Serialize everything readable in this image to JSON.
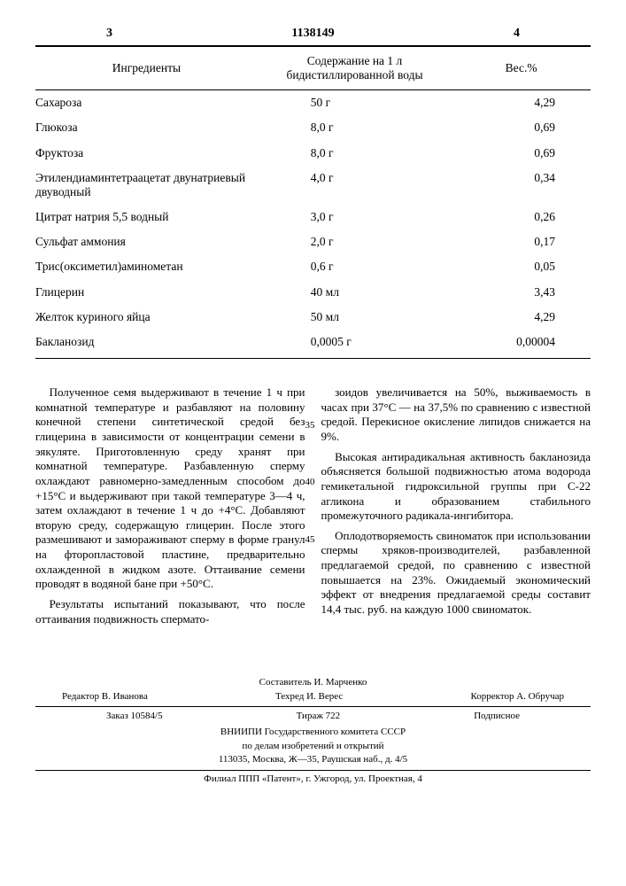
{
  "header": {
    "left_page": "3",
    "doc_number": "1138149",
    "right_page": "4"
  },
  "table": {
    "columns": [
      "Ингредиенты",
      "Содержание на 1 л бидистиллированной воды",
      "Вес.%"
    ],
    "rows": [
      [
        "Сахароза",
        "50 г",
        "4,29"
      ],
      [
        "Глюкоза",
        "8,0 г",
        "0,69"
      ],
      [
        "Фруктоза",
        "8,0 г",
        "0,69"
      ],
      [
        "Этилендиаминтетраацетат двунатриевый двуводный",
        "4,0 г",
        "0,34"
      ],
      [
        "Цитрат натрия 5,5 водный",
        "3,0 г",
        "0,26"
      ],
      [
        "Сульфат аммония",
        "2,0 г",
        "0,17"
      ],
      [
        "Трис(оксиметил)аминометан",
        "0,6 г",
        "0,05"
      ],
      [
        "Глицерин",
        "40 мл",
        "3,43"
      ],
      [
        "Желток куриного яйца",
        "50 мл",
        "4,29"
      ],
      [
        "Бакланозид",
        "0,0005 г",
        "0,00004"
      ]
    ]
  },
  "body": {
    "left_col": {
      "p1": "Полученное семя выдерживают в течение 1 ч при комнатной температуре и разбавляют на половину конечной степени синтетической средой без глицерина в зависимости от концентрации семени в эякуляте. Приготовленную среду хранят при комнатной температуре. Разбавленную сперму охлаждают равномерно-замедленным способом до +15°С и выдерживают при такой температуре 3—4 ч, затем охлаждают в течение 1 ч до +4°С. Добавляют вторую среду, содержащую глицерин. После этого размешивают и замораживают сперму в форме гранул на фторопластовой пластине, предварительно охлажденной в жидком азоте. Оттаивание семени проводят в водяной бане при +50°С.",
      "p2": "Результаты испытаний показывают, что после оттаивания подвижность спермато-"
    },
    "right_col": {
      "p1": "зоидов увеличивается на 50%, выживаемость в часах при 37°С — на 37,5% по сравнению с известной средой. Перекисное окисление липидов снижается на 9%.",
      "p2": "Высокая антирадикальная активность бакланозида объясняется большой подвижностью атома водорода гемикетальной гидроксильной группы при С-22 агликона и образованием стабильного промежуточного радикала-ингибитора.",
      "p3": "Оплодотворяемость свиноматок при использовании спермы хряков-производителей, разбавленной предлагаемой средой, по сравнению с известной повышается на 23%. Ожидаемый экономический эффект от внедрения предлагаемой среды составит 14,4 тыс. руб. на каждую 1000 свиноматок."
    },
    "line_numbers": {
      "n35": "35",
      "n40": "40",
      "n45": "45"
    }
  },
  "footer": {
    "editor": "Редактор В. Иванова",
    "order": "Заказ 10584/5",
    "compiler": "Составитель И. Марченко",
    "techred": "Техред И. Верес",
    "tirage": "Тираж 722",
    "corrector": "Корректор А. Обручар",
    "subscription": "Подписное",
    "org1": "ВНИИПИ Государственного комитета СССР",
    "org2": "по делам изобретений и открытий",
    "addr1": "113035, Москва, Ж—35, Раушская наб., д. 4/5",
    "addr2": "Филиал ППП «Патент», г. Ужгород, ул. Проектная, 4"
  }
}
